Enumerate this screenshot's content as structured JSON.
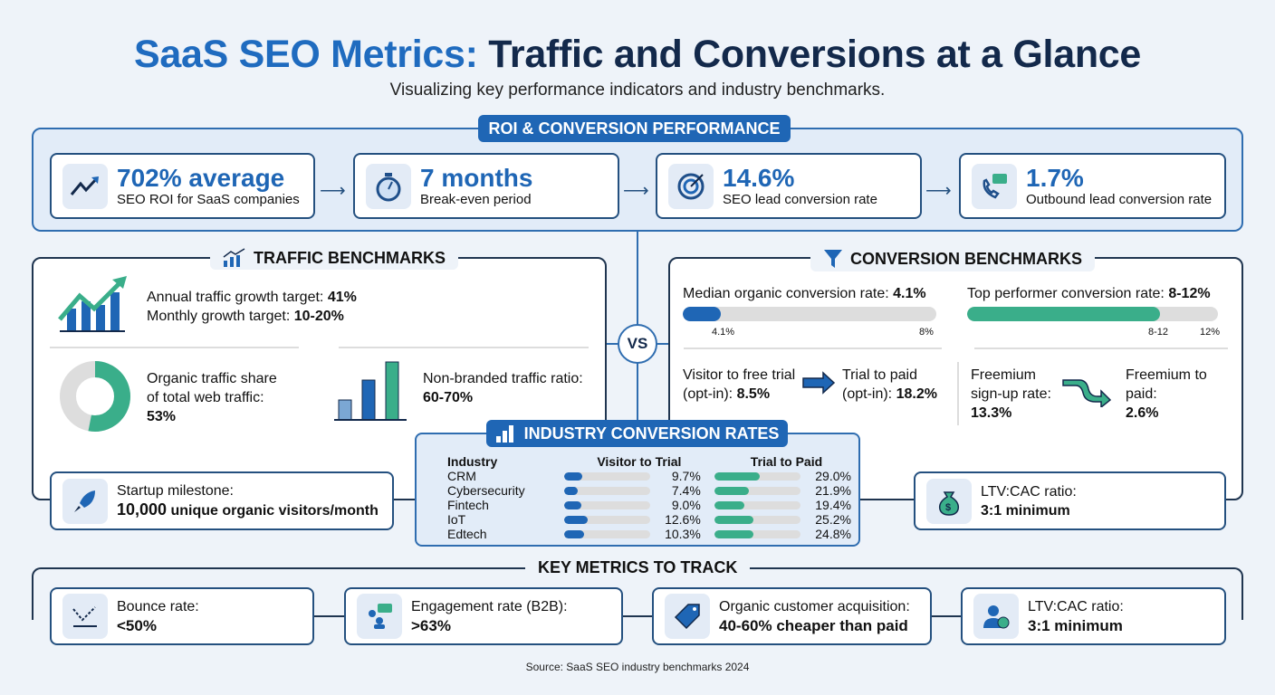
{
  "header": {
    "title_highlight": "SaaS SEO Metrics:",
    "title_rest": " Traffic and Conversions at a Glance",
    "subtitle": "Visualizing key performance indicators and industry benchmarks."
  },
  "roi": {
    "badge": "ROI & CONVERSION PERFORMANCE",
    "cards": [
      {
        "icon": "trend-up-icon",
        "value": "702% average",
        "label": "SEO ROI for SaaS companies"
      },
      {
        "icon": "stopwatch-icon",
        "value": "7 months",
        "label": "Break-even period"
      },
      {
        "icon": "target-icon",
        "value": "14.6%",
        "label": "SEO lead conversion rate"
      },
      {
        "icon": "phone-chat-icon",
        "value": "1.7%",
        "label": "Outbound lead conversion rate"
      }
    ]
  },
  "traffic": {
    "heading": "TRAFFIC BENCHMARKS",
    "annual_label": "Annual traffic growth target: ",
    "annual_value": "41%",
    "monthly_label": "Monthly growth target: ",
    "monthly_value": "10-20%",
    "organic_label1": "Organic traffic share",
    "organic_label2": "of total web traffic:",
    "organic_value": "53%",
    "organic_share": 53,
    "nonbranded_label": "Non-branded traffic ratio:",
    "nonbranded_value": "60-70%",
    "startup_label": "Startup milestone:",
    "startup_value": "10,000",
    "startup_rest": " unique organic visitors/month"
  },
  "vs": "VS",
  "conversion": {
    "heading": "CONVERSION BENCHMARKS",
    "median_label": "Median organic conversion rate: ",
    "median_value": "4.1%",
    "median_fill": 0.15,
    "median_ticks": [
      "4.1%",
      "8%"
    ],
    "top_label": "Top performer conversion rate: ",
    "top_value": "8-12%",
    "top_fill": 0.77,
    "top_ticks": [
      "8-12",
      "12%"
    ],
    "v2t_label1": "Visitor to free trial",
    "v2t_label2": "(opt-in): ",
    "v2t_value": "8.5%",
    "t2p_label1": "Trial to paid",
    "t2p_label2": "(opt-in): ",
    "t2p_value": "18.2%",
    "fs_label1": "Freemium",
    "fs_label2": "sign-up rate:",
    "fs_value": "13.3%",
    "f2p_label1": "Freemium to",
    "f2p_label2": "paid:",
    "f2p_value": "2.6%",
    "ltv_label": "LTV:CAC ratio:",
    "ltv_value": "3:1 minimum"
  },
  "industry": {
    "heading": "INDUSTRY CONVERSION RATES",
    "columns": [
      "Industry",
      "Visitor to Trial",
      "Trial to Paid"
    ],
    "rows": [
      {
        "name": "CRM",
        "v2t": 9.7,
        "v2t_label": "9.7%",
        "t2p": 29.0,
        "t2p_label": "29.0%"
      },
      {
        "name": "Cybersecurity",
        "v2t": 7.4,
        "v2t_label": "7.4%",
        "t2p": 21.9,
        "t2p_label": "21.9%"
      },
      {
        "name": "Fintech",
        "v2t": 9.0,
        "v2t_label": "9.0%",
        "t2p": 19.4,
        "t2p_label": "19.4%"
      },
      {
        "name": "IoT",
        "v2t": 12.6,
        "v2t_label": "12.6%",
        "t2p": 25.2,
        "t2p_label": "25.2%"
      },
      {
        "name": "Edtech",
        "v2t": 10.3,
        "v2t_label": "10.3%",
        "t2p": 24.8,
        "t2p_label": "24.8%"
      }
    ]
  },
  "key_metrics": {
    "heading": "KEY METRICS TO TRACK",
    "cards": [
      {
        "icon": "bounce-icon",
        "label": "Bounce rate:",
        "value": "<50%"
      },
      {
        "icon": "engagement-icon",
        "label": "Engagement rate (B2B):",
        "value": ">63%"
      },
      {
        "icon": "price-tag-icon",
        "label": "Organic customer acquisition:",
        "value": "40-60% cheaper than paid"
      },
      {
        "icon": "user-dollar-icon",
        "label": "LTV:CAC ratio:",
        "value": "3:1 minimum"
      }
    ]
  },
  "source": "Source: SaaS SEO industry benchmarks 2024",
  "colors": {
    "blue": "#1f66b5",
    "green": "#3aae8a",
    "navy": "#13294b"
  }
}
